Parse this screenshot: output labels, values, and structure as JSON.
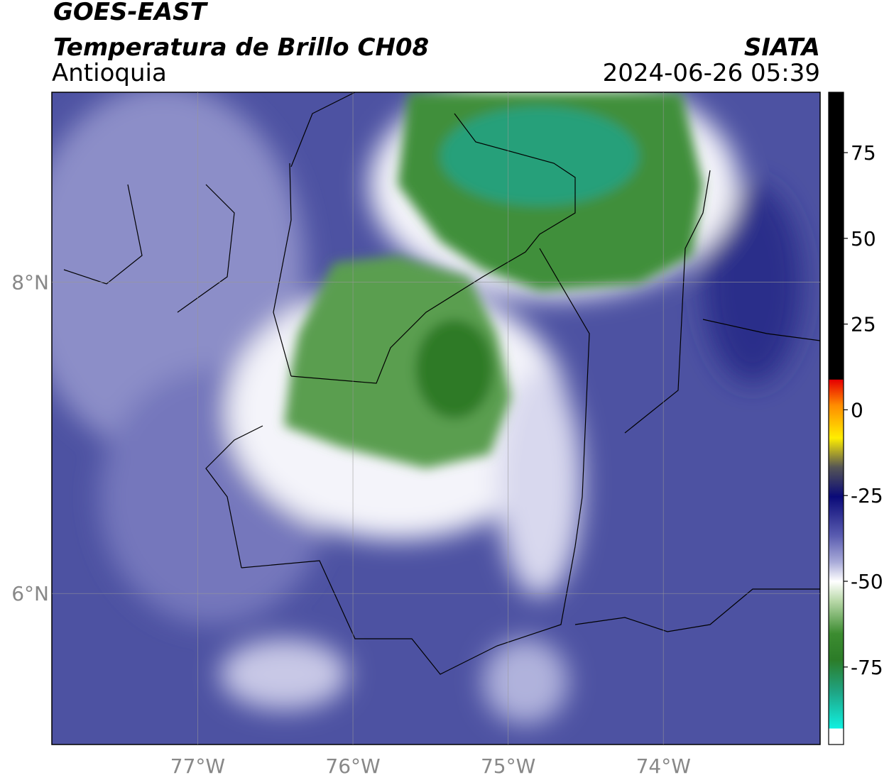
{
  "header": {
    "title": "GOES-EAST",
    "subtitle": "Temperatura de Brillo CH08",
    "region": "Antioquia",
    "source": "SIATA",
    "datetime": "2024-06-26 05:39"
  },
  "map": {
    "lonlim": [
      -77.94,
      -72.99
    ],
    "latlim": [
      5.03,
      9.22
    ],
    "lon_ticks": [
      {
        "value": -77,
        "label": "77°W"
      },
      {
        "value": -76,
        "label": "76°W"
      },
      {
        "value": -75,
        "label": "75°W"
      },
      {
        "value": -74,
        "label": "74°W"
      }
    ],
    "lat_ticks": [
      {
        "value": 8,
        "label": "8°N"
      },
      {
        "value": 6,
        "label": "6°N"
      }
    ]
  },
  "colorbar": {
    "lim": [
      -97.6,
      92.6
    ],
    "ticks": [
      75,
      50,
      25,
      0,
      -25,
      -50,
      -75
    ]
  }
}
